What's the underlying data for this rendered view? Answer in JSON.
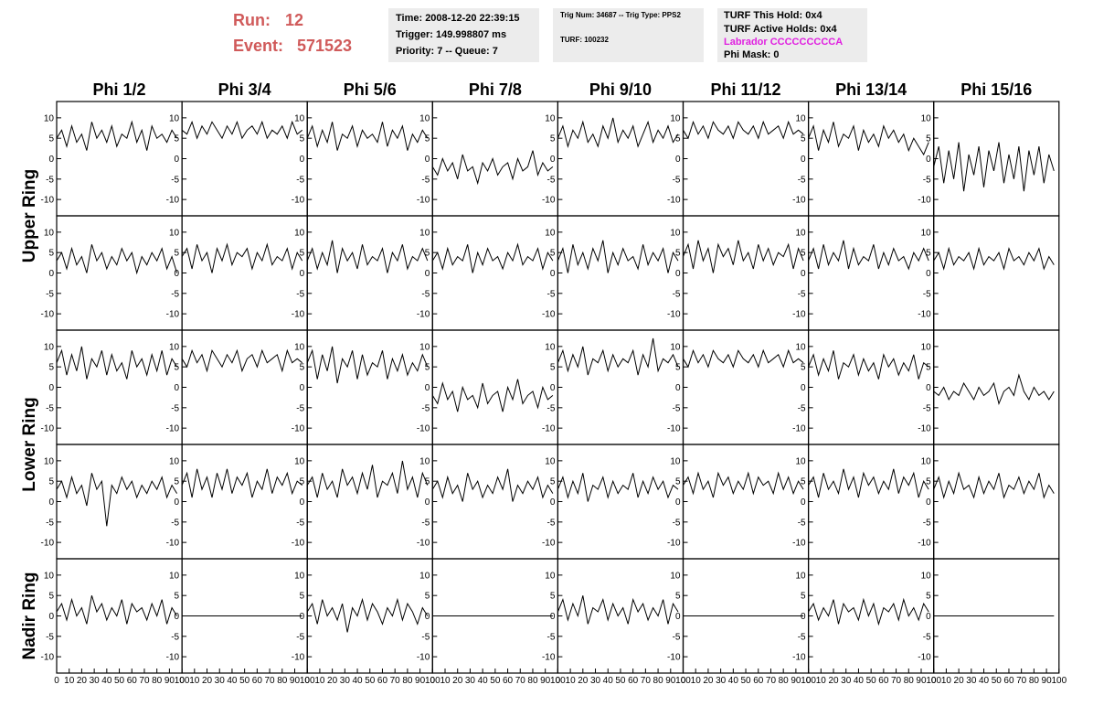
{
  "chart_data": {
    "type": "line",
    "header": {
      "run_label": "Run:",
      "run": 12,
      "event_label": "Event:",
      "event": 571523,
      "box1": [
        "Time: 2008-12-20 22:39:15",
        "Trigger: 149.998807 ms",
        "Priority: 7 -- Queue: 7"
      ],
      "box2": [
        "Trig Num: 34687 -- Trig Type: PPS2",
        "TURF: 100232"
      ],
      "box3": [
        "TURF This Hold: 0x4",
        "TURF Active Holds: 0x4",
        "Labrador CCCCCCCCCA",
        "Phi Mask: 0"
      ]
    },
    "columns": [
      "Phi 1/2",
      "Phi 3/4",
      "Phi 5/6",
      "Phi 7/8",
      "Phi 9/10",
      "Phi 11/12",
      "Phi 13/14",
      "Phi 15/16"
    ],
    "ring_labels": [
      "Upper Ring",
      "Lower Ring",
      "Nadir Ring"
    ],
    "color": "#000000",
    "xlim": [
      0,
      100
    ],
    "xticks": [
      0,
      10,
      20,
      30,
      40,
      50,
      60,
      70,
      80,
      90,
      100
    ],
    "ylim": [
      -14,
      14
    ],
    "yticks": [
      -10,
      -5,
      0,
      5,
      10
    ],
    "x": [
      0,
      4,
      8,
      12,
      16,
      20,
      24,
      28,
      32,
      36,
      40,
      44,
      48,
      52,
      56,
      60,
      64,
      68,
      72,
      76,
      80,
      84,
      88,
      92,
      96
    ],
    "panels": [
      [
        [
          5,
          7,
          3,
          8,
          4,
          6,
          2,
          9,
          5,
          7,
          4,
          8,
          3,
          6,
          5,
          9,
          4,
          7,
          2,
          8,
          5,
          6,
          4,
          7,
          5
        ],
        [
          7,
          6,
          9,
          5,
          8,
          6,
          9,
          7,
          5,
          8,
          6,
          9,
          5,
          7,
          8,
          6,
          9,
          5,
          7,
          6,
          8,
          5,
          9,
          6,
          7
        ],
        [
          5,
          8,
          3,
          7,
          4,
          9,
          2,
          6,
          5,
          8,
          3,
          7,
          5,
          6,
          4,
          9,
          3,
          7,
          5,
          8,
          2,
          6,
          4,
          7,
          5
        ],
        [
          -2,
          -4,
          0,
          -3,
          -1,
          -5,
          1,
          -3,
          -2,
          -6,
          -1,
          -3,
          0,
          -4,
          -2,
          -1,
          -5,
          0,
          -3,
          -2,
          2,
          -4,
          -1,
          -3,
          -2
        ],
        [
          5,
          8,
          3,
          7,
          5,
          9,
          4,
          6,
          3,
          8,
          5,
          10,
          4,
          7,
          5,
          8,
          3,
          6,
          9,
          4,
          7,
          5,
          8,
          4,
          6
        ],
        [
          7,
          5,
          9,
          6,
          8,
          5,
          9,
          7,
          6,
          8,
          5,
          9,
          7,
          6,
          8,
          5,
          9,
          6,
          7,
          8,
          5,
          9,
          6,
          7,
          6
        ],
        [
          5,
          8,
          2,
          7,
          4,
          9,
          3,
          6,
          5,
          8,
          2,
          7,
          4,
          6,
          3,
          8,
          5,
          7,
          4,
          6,
          2,
          5,
          3,
          1,
          4
        ],
        [
          -2,
          3,
          -6,
          2,
          -5,
          4,
          -8,
          1,
          -4,
          3,
          -7,
          2,
          -3,
          4,
          -6,
          1,
          -5,
          3,
          -8,
          2,
          -4,
          3,
          -6,
          1,
          -3
        ]
      ],
      [
        [
          3,
          5,
          1,
          6,
          2,
          4,
          0,
          7,
          3,
          5,
          1,
          4,
          2,
          6,
          3,
          5,
          0,
          4,
          2,
          5,
          3,
          6,
          1,
          4,
          0
        ],
        [
          4,
          6,
          1,
          7,
          3,
          5,
          0,
          6,
          3,
          7,
          2,
          5,
          4,
          6,
          1,
          5,
          3,
          7,
          2,
          4,
          3,
          6,
          1,
          5,
          3
        ],
        [
          3,
          6,
          1,
          5,
          2,
          8,
          0,
          6,
          3,
          5,
          1,
          7,
          2,
          4,
          3,
          6,
          0,
          5,
          3,
          7,
          1,
          4,
          3,
          6,
          3
        ],
        [
          3,
          5,
          1,
          6,
          2,
          4,
          3,
          7,
          0,
          5,
          2,
          6,
          3,
          4,
          1,
          5,
          3,
          7,
          2,
          4,
          3,
          6,
          1,
          5,
          3
        ],
        [
          3,
          6,
          0,
          7,
          2,
          5,
          1,
          6,
          3,
          8,
          0,
          5,
          2,
          6,
          3,
          4,
          1,
          7,
          2,
          5,
          3,
          6,
          0,
          5,
          3
        ],
        [
          4,
          7,
          1,
          8,
          3,
          6,
          0,
          7,
          4,
          6,
          2,
          8,
          3,
          5,
          1,
          7,
          3,
          6,
          2,
          5,
          4,
          7,
          1,
          6,
          3
        ],
        [
          3,
          6,
          1,
          7,
          2,
          5,
          3,
          8,
          1,
          6,
          2,
          4,
          3,
          7,
          1,
          5,
          2,
          6,
          3,
          4,
          1,
          5,
          3,
          6,
          3
        ],
        [
          3,
          5,
          1,
          6,
          2,
          4,
          3,
          5,
          1,
          6,
          2,
          4,
          3,
          5,
          1,
          6,
          3,
          4,
          2,
          5,
          3,
          6,
          1,
          4,
          2
        ]
      ],
      [
        [
          6,
          9,
          3,
          8,
          4,
          10,
          2,
          7,
          5,
          9,
          3,
          8,
          4,
          6,
          2,
          9,
          5,
          7,
          3,
          8,
          4,
          9,
          3,
          7,
          5
        ],
        [
          7,
          5,
          9,
          6,
          8,
          4,
          9,
          7,
          5,
          8,
          6,
          9,
          4,
          7,
          8,
          5,
          9,
          6,
          7,
          8,
          4,
          9,
          6,
          7,
          6
        ],
        [
          6,
          9,
          2,
          8,
          4,
          10,
          1,
          7,
          5,
          9,
          2,
          8,
          3,
          6,
          5,
          9,
          2,
          7,
          4,
          8,
          3,
          6,
          4,
          8,
          5
        ],
        [
          -2,
          -4,
          1,
          -3,
          -1,
          -6,
          0,
          -3,
          -2,
          -5,
          1,
          -4,
          -2,
          -1,
          -6,
          0,
          -3,
          2,
          -4,
          -2,
          -1,
          -5,
          0,
          -3,
          -2
        ],
        [
          6,
          9,
          4,
          8,
          5,
          10,
          3,
          7,
          6,
          9,
          4,
          8,
          5,
          7,
          6,
          9,
          3,
          8,
          5,
          12,
          4,
          7,
          6,
          8,
          5
        ],
        [
          7,
          5,
          9,
          6,
          8,
          5,
          9,
          7,
          6,
          8,
          5,
          9,
          7,
          6,
          8,
          5,
          9,
          6,
          7,
          8,
          5,
          9,
          6,
          7,
          6
        ],
        [
          5,
          8,
          3,
          7,
          4,
          9,
          2,
          6,
          5,
          8,
          3,
          7,
          4,
          6,
          2,
          8,
          5,
          7,
          3,
          6,
          4,
          8,
          2,
          6,
          5
        ],
        [
          -1,
          -2,
          0,
          -3,
          -1,
          -2,
          1,
          -1,
          -3,
          0,
          -2,
          -1,
          1,
          -4,
          -1,
          0,
          -2,
          3,
          -1,
          -3,
          0,
          -2,
          -1,
          -3,
          -1
        ]
      ],
      [
        [
          3,
          5,
          1,
          6,
          2,
          4,
          -1,
          7,
          3,
          5,
          -6,
          4,
          2,
          6,
          3,
          5,
          1,
          4,
          2,
          5,
          3,
          6,
          1,
          4,
          2
        ],
        [
          4,
          7,
          1,
          8,
          3,
          6,
          1,
          7,
          3,
          8,
          2,
          6,
          4,
          7,
          1,
          5,
          3,
          8,
          2,
          6,
          4,
          7,
          2,
          5,
          4
        ],
        [
          4,
          6,
          1,
          7,
          3,
          5,
          1,
          8,
          4,
          6,
          2,
          7,
          3,
          9,
          1,
          5,
          4,
          7,
          2,
          10,
          3,
          6,
          1,
          7,
          4
        ],
        [
          3,
          5,
          1,
          6,
          2,
          4,
          0,
          7,
          3,
          5,
          1,
          4,
          2,
          6,
          3,
          8,
          0,
          4,
          2,
          5,
          3,
          6,
          1,
          4,
          2
        ],
        [
          3,
          6,
          1,
          5,
          2,
          7,
          0,
          4,
          3,
          6,
          1,
          5,
          2,
          4,
          3,
          7,
          1,
          5,
          2,
          6,
          3,
          5,
          1,
          4,
          3
        ],
        [
          4,
          6,
          2,
          7,
          3,
          5,
          1,
          7,
          4,
          6,
          2,
          5,
          3,
          7,
          2,
          6,
          4,
          5,
          2,
          7,
          3,
          6,
          2,
          5,
          3
        ],
        [
          4,
          6,
          1,
          7,
          3,
          5,
          2,
          8,
          3,
          6,
          1,
          7,
          4,
          6,
          2,
          5,
          3,
          8,
          2,
          6,
          4,
          7,
          1,
          5,
          3
        ],
        [
          3,
          6,
          1,
          5,
          2,
          7,
          3,
          4,
          1,
          6,
          2,
          5,
          3,
          7,
          1,
          4,
          3,
          6,
          2,
          5,
          3,
          7,
          1,
          4,
          2
        ]
      ],
      [
        [
          1,
          3,
          -1,
          4,
          0,
          2,
          -2,
          5,
          1,
          3,
          -1,
          2,
          0,
          4,
          -2,
          3,
          1,
          2,
          -1,
          3,
          0,
          4,
          -2,
          2,
          0
        ],
        [
          0,
          0,
          0,
          0,
          0,
          0,
          0,
          0,
          0,
          0,
          0,
          0,
          0,
          0,
          0,
          0,
          0,
          0,
          0,
          0,
          0,
          0,
          0,
          0,
          0
        ],
        [
          1,
          3,
          -2,
          4,
          0,
          2,
          -1,
          3,
          -4,
          2,
          0,
          4,
          -1,
          3,
          1,
          -2,
          2,
          0,
          4,
          -1,
          3,
          1,
          -2,
          2,
          0
        ],
        [
          0,
          0,
          0,
          0,
          0,
          0,
          0,
          0,
          0,
          0,
          0,
          0,
          0,
          0,
          0,
          0,
          0,
          0,
          0,
          0,
          0,
          0,
          0,
          0,
          0
        ],
        [
          1,
          4,
          -1,
          3,
          0,
          5,
          -2,
          2,
          1,
          4,
          -1,
          3,
          0,
          2,
          -2,
          4,
          1,
          3,
          -1,
          2,
          0,
          4,
          -2,
          3,
          1
        ],
        [
          0,
          0,
          0,
          0,
          0,
          0,
          0,
          0,
          0,
          0,
          0,
          0,
          0,
          0,
          0,
          0,
          0,
          0,
          0,
          0,
          0,
          0,
          0,
          0,
          0
        ],
        [
          1,
          3,
          -1,
          2,
          0,
          4,
          -2,
          3,
          1,
          2,
          -1,
          4,
          0,
          3,
          -2,
          2,
          1,
          3,
          -1,
          4,
          0,
          2,
          -1,
          3,
          1
        ],
        [
          0,
          0,
          0,
          0,
          0,
          0,
          0,
          0,
          0,
          0,
          0,
          0,
          0,
          0,
          0,
          0,
          0,
          0,
          0,
          0,
          0,
          0,
          0,
          0,
          0
        ]
      ]
    ]
  }
}
